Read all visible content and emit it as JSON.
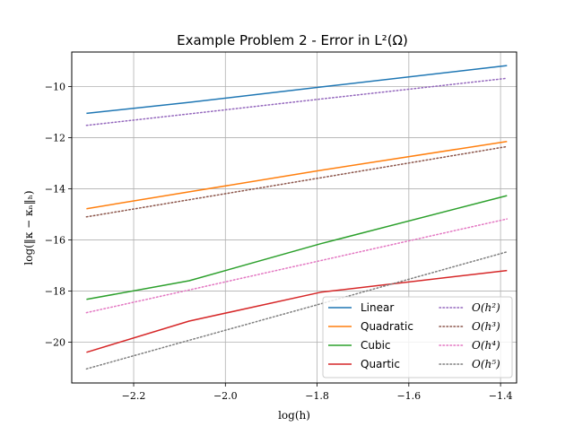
{
  "chart_data": {
    "type": "line",
    "title": "Example Problem 2 - Error in L²(Ω)",
    "xlabel": "log(h)",
    "ylabel": "log(‖κ − κₙ‖ₕ)",
    "xlim": [
      -2.335,
      -1.365
    ],
    "ylim": [
      -21.6,
      -8.65
    ],
    "xticks": [
      -2.2,
      -2.0,
      -1.8,
      -1.6,
      -1.4
    ],
    "xtick_labels": [
      "−2.2",
      "−2.0",
      "−1.8",
      "−1.6",
      "−1.4"
    ],
    "yticks": [
      -20,
      -18,
      -16,
      -14,
      -12,
      -10
    ],
    "ytick_labels": [
      "−20",
      "−18",
      "−16",
      "−14",
      "−12",
      "−10"
    ],
    "grid": true,
    "legend_position": "lower-right",
    "legend_columns": 2,
    "series": [
      {
        "name": "Linear",
        "color": "#1f77b4",
        "style": "solid",
        "x": [
          -2.303,
          -2.079,
          -1.792,
          -1.386
        ],
        "y": [
          -11.05,
          -10.62,
          -10.02,
          -9.18
        ]
      },
      {
        "name": "Quadratic",
        "color": "#ff7f0e",
        "style": "solid",
        "x": [
          -2.303,
          -2.079,
          -1.792,
          -1.386
        ],
        "y": [
          -14.78,
          -14.12,
          -13.28,
          -12.15
        ]
      },
      {
        "name": "Cubic",
        "color": "#2ca02c",
        "style": "solid",
        "x": [
          -2.303,
          -2.079,
          -1.792,
          -1.386
        ],
        "y": [
          -18.33,
          -17.6,
          -16.15,
          -14.27
        ]
      },
      {
        "name": "Quartic",
        "color": "#d62728",
        "style": "solid",
        "x": [
          -2.303,
          -2.079,
          -1.792,
          -1.386
        ],
        "y": [
          -20.4,
          -19.18,
          -18.05,
          -17.2
        ]
      },
      {
        "name": "O(h²)",
        "color": "#9467bd",
        "style": "dotted",
        "x": [
          -2.303,
          -2.079,
          -1.792,
          -1.386
        ],
        "y": [
          -11.52,
          -11.07,
          -10.49,
          -9.68
        ]
      },
      {
        "name": "O(h³)",
        "color": "#8c564b",
        "style": "dotted",
        "x": [
          -2.303,
          -2.079,
          -1.792,
          -1.386
        ],
        "y": [
          -15.1,
          -14.43,
          -13.57,
          -12.35
        ]
      },
      {
        "name": "O(h⁴)",
        "color": "#e377c2",
        "style": "dotted",
        "x": [
          -2.303,
          -2.079,
          -1.792,
          -1.386
        ],
        "y": [
          -18.85,
          -17.96,
          -16.81,
          -15.18
        ]
      },
      {
        "name": "O(h⁵)",
        "color": "#7f7f7f",
        "style": "dotted",
        "x": [
          -2.303,
          -2.079,
          -1.792,
          -1.386
        ],
        "y": [
          -21.05,
          -19.93,
          -18.5,
          -16.47
        ]
      }
    ]
  }
}
